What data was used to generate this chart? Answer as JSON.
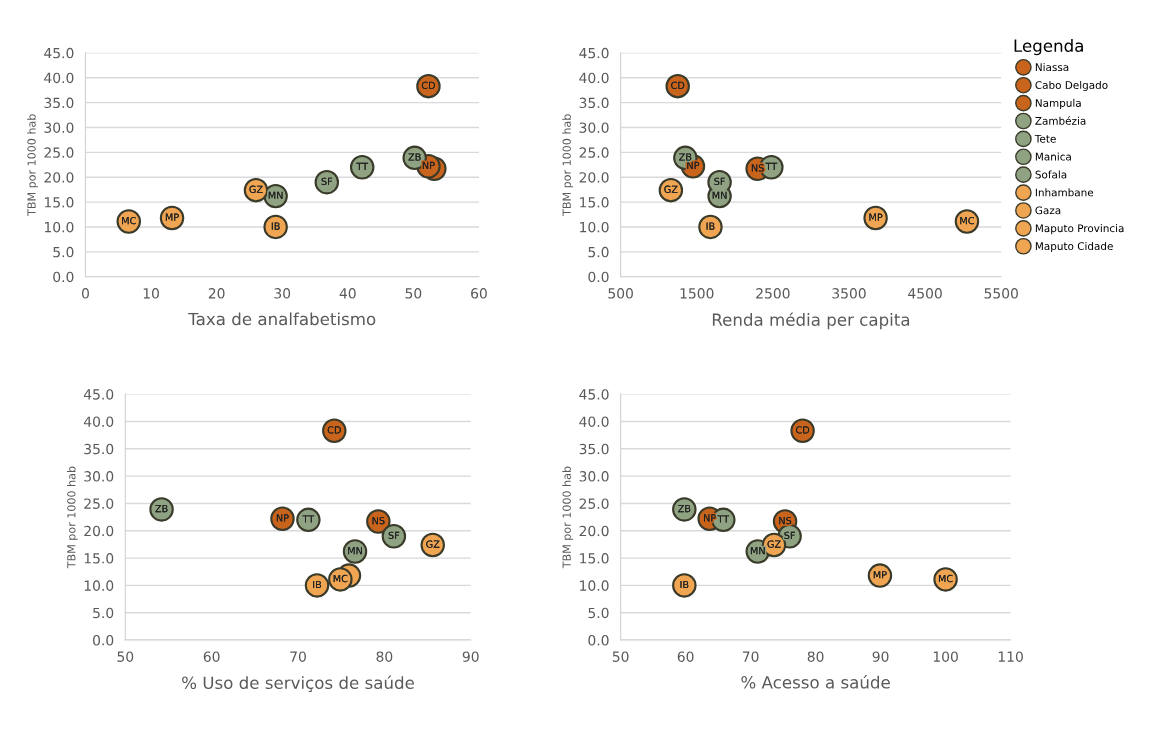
{
  "chart_data": [
    {
      "type": "scatter",
      "xlabel": "Taxa de analfabetismo",
      "ylabel": "TBM por 1000 hab",
      "xlim": [
        0,
        60
      ],
      "xticks": [
        0,
        10,
        20,
        30,
        40,
        50,
        60
      ],
      "ylim": [
        0,
        45
      ],
      "yticks": [
        {
          "value": 0,
          "label": "0.0"
        },
        {
          "value": 5,
          "label": "5.0"
        },
        {
          "value": 10,
          "label": "10.0"
        },
        {
          "value": 15,
          "label": "15.0"
        },
        {
          "value": 20,
          "label": "20.0"
        },
        {
          "value": 25,
          "label": "25.0"
        },
        {
          "value": 30,
          "label": "30.0"
        },
        {
          "value": 35,
          "label": "35.0"
        },
        {
          "value": 40,
          "label": "40.0"
        },
        {
          "value": 45,
          "label": "45.0"
        }
      ],
      "grid": "y",
      "marker": "circle",
      "legend": false,
      "series": [
        {
          "color": "#c8641c",
          "x": [
            53.2
          ],
          "values": [
            21.7
          ],
          "value_labels": [
            null
          ]
        },
        {
          "color": "#c8641c",
          "x": [
            52.3
          ],
          "values": [
            38.3
          ],
          "value_labels": [
            "CD"
          ]
        },
        {
          "color": "#c8641c",
          "x": [
            52.3
          ],
          "values": [
            22.2
          ],
          "value_labels": [
            "NP"
          ]
        },
        {
          "color": "#8fa383",
          "x": [
            50.2
          ],
          "values": [
            23.9
          ],
          "value_labels": [
            "ZB"
          ]
        },
        {
          "color": "#8fa383",
          "x": [
            42.2
          ],
          "values": [
            22.0
          ],
          "value_labels": [
            "TT"
          ]
        },
        {
          "color": "#8fa383",
          "x": [
            29.0
          ],
          "values": [
            16.2
          ],
          "value_labels": [
            "MN"
          ]
        },
        {
          "color": "#8fa383",
          "x": [
            36.8
          ],
          "values": [
            19.0
          ],
          "value_labels": [
            "SF"
          ]
        },
        {
          "color": "#f0a552",
          "x": [
            29.0
          ],
          "values": [
            10.0
          ],
          "value_labels": [
            "IB"
          ]
        },
        {
          "color": "#f0a552",
          "x": [
            26.0
          ],
          "values": [
            17.4
          ],
          "value_labels": [
            "GZ"
          ]
        },
        {
          "color": "#f0a552",
          "x": [
            13.2
          ],
          "values": [
            11.8
          ],
          "value_labels": [
            "MP"
          ]
        },
        {
          "color": "#f0a552",
          "x": [
            6.6
          ],
          "values": [
            11.1
          ],
          "value_labels": [
            "MC"
          ]
        }
      ]
    },
    {
      "type": "scatter",
      "xlabel": "Renda média per capita",
      "ylabel": "TBM por 1000 hab",
      "xlim": [
        500,
        5500
      ],
      "xticks": [
        500,
        1500,
        2500,
        3500,
        4500,
        5500
      ],
      "ylim": [
        0,
        45
      ],
      "yticks": [
        {
          "value": 0,
          "label": "0.0"
        },
        {
          "value": 5,
          "label": "5.0"
        },
        {
          "value": 10,
          "label": "10.0"
        },
        {
          "value": 15,
          "label": "15.0"
        },
        {
          "value": 20,
          "label": "20.0"
        },
        {
          "value": 25,
          "label": "25.0"
        },
        {
          "value": 30,
          "label": "30.0"
        },
        {
          "value": 35,
          "label": "35.0"
        },
        {
          "value": 40,
          "label": "40.0"
        },
        {
          "value": 45,
          "label": "45.0"
        }
      ],
      "grid": "y",
      "marker": "circle",
      "legend": "right",
      "legend_title": "Legenda",
      "series": [
        {
          "name": "Niassa",
          "color": "#c8641c",
          "x": [
            2300
          ],
          "values": [
            21.7
          ],
          "value_labels": [
            "NS"
          ]
        },
        {
          "name": "Cabo Delgado",
          "color": "#c8641c",
          "x": [
            1250
          ],
          "values": [
            38.3
          ],
          "value_labels": [
            "CD"
          ]
        },
        {
          "name": "Nampula",
          "color": "#c8641c",
          "x": [
            1450
          ],
          "values": [
            22.2
          ],
          "value_labels": [
            "NP"
          ]
        },
        {
          "name": "Zambézia",
          "color": "#8fa383",
          "x": [
            1350
          ],
          "values": [
            23.9
          ],
          "value_labels": [
            "ZB"
          ]
        },
        {
          "name": "Tete",
          "color": "#8fa383",
          "x": [
            2480
          ],
          "values": [
            22.0
          ],
          "value_labels": [
            "TT"
          ]
        },
        {
          "name": "Manica",
          "color": "#8fa383",
          "x": [
            1800
          ],
          "values": [
            16.2
          ],
          "value_labels": [
            "MN"
          ]
        },
        {
          "name": "Sofala",
          "color": "#8fa383",
          "x": [
            1800
          ],
          "values": [
            19.0
          ],
          "value_labels": [
            "SF"
          ]
        },
        {
          "name": "Inhambane",
          "color": "#f0a552",
          "x": [
            1680
          ],
          "values": [
            10.0
          ],
          "value_labels": [
            "IB"
          ]
        },
        {
          "name": "Gaza",
          "color": "#f0a552",
          "x": [
            1160
          ],
          "values": [
            17.4
          ],
          "value_labels": [
            "GZ"
          ]
        },
        {
          "name": "Maputo Provincia",
          "color": "#f0a552",
          "x": [
            3850
          ],
          "values": [
            11.8
          ],
          "value_labels": [
            "MP"
          ]
        },
        {
          "name": "Maputo Cidade",
          "color": "#f0a552",
          "x": [
            5050
          ],
          "values": [
            11.1
          ],
          "value_labels": [
            "MC"
          ]
        }
      ]
    },
    {
      "type": "scatter",
      "xlabel": "% Uso de serviços de saúde",
      "ylabel": "TBM por 1000 hab",
      "xlim": [
        50,
        90
      ],
      "xticks": [
        50,
        60,
        70,
        80,
        90
      ],
      "ylim": [
        0,
        45
      ],
      "yticks": [
        {
          "value": 0,
          "label": "0.0"
        },
        {
          "value": 5,
          "label": "5.0"
        },
        {
          "value": 10,
          "label": "10.0"
        },
        {
          "value": 15,
          "label": "15.0"
        },
        {
          "value": 20,
          "label": "20.0"
        },
        {
          "value": 25,
          "label": "25.0"
        },
        {
          "value": 30,
          "label": "30.0"
        },
        {
          "value": 35,
          "label": "35.0"
        },
        {
          "value": 40,
          "label": "40.0"
        },
        {
          "value": 45,
          "label": "45.0"
        }
      ],
      "grid": "y",
      "marker": "circle",
      "legend": false,
      "series": [
        {
          "color": "#c8641c",
          "x": [
            79.3
          ],
          "values": [
            21.7
          ],
          "value_labels": [
            "NS"
          ]
        },
        {
          "color": "#c8641c",
          "x": [
            74.2
          ],
          "values": [
            38.3
          ],
          "value_labels": [
            "CD"
          ]
        },
        {
          "color": "#c8641c",
          "x": [
            68.2
          ],
          "values": [
            22.2
          ],
          "value_labels": [
            "NP"
          ]
        },
        {
          "color": "#8fa383",
          "x": [
            54.2
          ],
          "values": [
            23.9
          ],
          "value_labels": [
            "ZB"
          ]
        },
        {
          "color": "#8fa383",
          "x": [
            71.2
          ],
          "values": [
            22.0
          ],
          "value_labels": [
            "TT"
          ]
        },
        {
          "color": "#8fa383",
          "x": [
            76.6
          ],
          "values": [
            16.2
          ],
          "value_labels": [
            "MN"
          ]
        },
        {
          "color": "#8fa383",
          "x": [
            81.1
          ],
          "values": [
            19.0
          ],
          "value_labels": [
            "SF"
          ]
        },
        {
          "color": "#f0a552",
          "x": [
            72.2
          ],
          "values": [
            10.0
          ],
          "value_labels": [
            "IB"
          ]
        },
        {
          "color": "#f0a552",
          "x": [
            85.6
          ],
          "values": [
            17.4
          ],
          "value_labels": [
            "GZ"
          ]
        },
        {
          "color": "#f0a552",
          "x": [
            75.9
          ],
          "values": [
            11.8
          ],
          "value_labels": [
            null
          ]
        },
        {
          "color": "#f0a552",
          "x": [
            74.9
          ],
          "values": [
            11.1
          ],
          "value_labels": [
            "MC"
          ]
        }
      ]
    },
    {
      "type": "scatter",
      "xlabel": "% Acesso a saúde",
      "ylabel": "TBM por 1000 hab",
      "xlim": [
        50,
        110
      ],
      "xticks": [
        50,
        60,
        70,
        80,
        90,
        100,
        110
      ],
      "ylim": [
        0,
        45
      ],
      "yticks": [
        {
          "value": 0,
          "label": "0.0"
        },
        {
          "value": 5,
          "label": "5.0"
        },
        {
          "value": 10,
          "label": "10.0"
        },
        {
          "value": 15,
          "label": "15.0"
        },
        {
          "value": 20,
          "label": "20.0"
        },
        {
          "value": 25,
          "label": "25.0"
        },
        {
          "value": 30,
          "label": "30.0"
        },
        {
          "value": 35,
          "label": "35.0"
        },
        {
          "value": 40,
          "label": "40.0"
        },
        {
          "value": 45,
          "label": "45.0"
        }
      ],
      "grid": "y",
      "marker": "circle",
      "legend": false,
      "series": [
        {
          "color": "#c8641c",
          "x": [
            75.3
          ],
          "values": [
            21.7
          ],
          "value_labels": [
            "NS"
          ]
        },
        {
          "color": "#c8641c",
          "x": [
            78.0
          ],
          "values": [
            38.3
          ],
          "value_labels": [
            "CD"
          ]
        },
        {
          "color": "#c8641c",
          "x": [
            63.7
          ],
          "values": [
            22.2
          ],
          "value_labels": [
            "NP"
          ]
        },
        {
          "color": "#8fa383",
          "x": [
            59.8
          ],
          "values": [
            23.9
          ],
          "value_labels": [
            "ZB"
          ]
        },
        {
          "color": "#8fa383",
          "x": [
            65.8
          ],
          "values": [
            22.0
          ],
          "value_labels": [
            "TT"
          ]
        },
        {
          "color": "#8fa383",
          "x": [
            71.1
          ],
          "values": [
            16.2
          ],
          "value_labels": [
            "MN"
          ]
        },
        {
          "color": "#8fa383",
          "x": [
            76.0
          ],
          "values": [
            19.0
          ],
          "value_labels": [
            "SF"
          ]
        },
        {
          "color": "#f0a552",
          "x": [
            59.8
          ],
          "values": [
            10.0
          ],
          "value_labels": [
            "IB"
          ]
        },
        {
          "color": "#f0a552",
          "x": [
            73.6
          ],
          "values": [
            17.4
          ],
          "value_labels": [
            "GZ"
          ]
        },
        {
          "color": "#f0a552",
          "x": [
            89.9
          ],
          "values": [
            11.8
          ],
          "value_labels": [
            "MP"
          ]
        },
        {
          "color": "#f0a552",
          "x": [
            100.0
          ],
          "values": [
            11.1
          ],
          "value_labels": [
            "MC"
          ]
        }
      ]
    }
  ]
}
